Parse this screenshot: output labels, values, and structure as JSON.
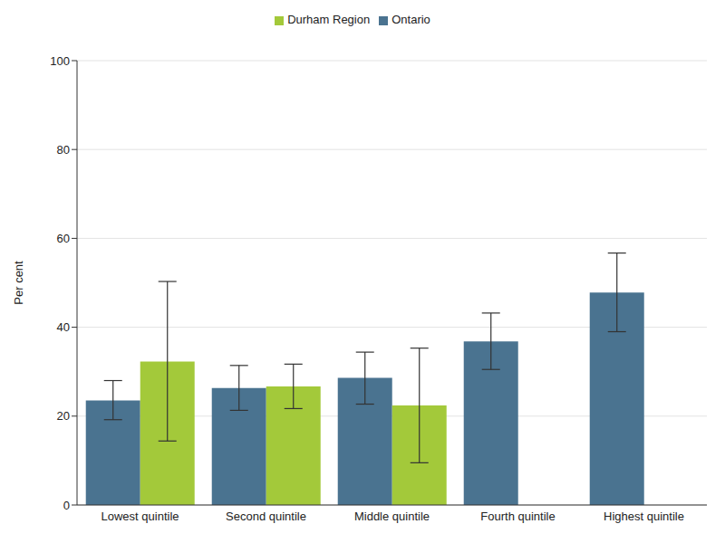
{
  "chart_data": {
    "type": "bar",
    "y_label": "Per cent",
    "categories": [
      "Lowest quintile",
      "Second quintile",
      "Middle quintile",
      "Fourth quintile",
      "Highest quintile"
    ],
    "series": [
      {
        "name": "Ontario",
        "color": "#4a7390",
        "values": [
          23.5,
          26.3,
          28.6,
          36.8,
          47.8
        ],
        "ci": [
          [
            19.2,
            28.0
          ],
          [
            21.3,
            31.4
          ],
          [
            22.7,
            34.4
          ],
          [
            30.5,
            43.2
          ],
          [
            39.0,
            56.7
          ]
        ]
      },
      {
        "name": "Durham Region",
        "color": "#a3c93a",
        "values": [
          32.3,
          26.7,
          22.4,
          null,
          null
        ],
        "ci": [
          [
            14.4,
            50.3
          ],
          [
            21.7,
            31.7
          ],
          [
            9.5,
            35.3
          ],
          null,
          null
        ]
      }
    ],
    "ylim": [
      0,
      100
    ],
    "yticks": [
      0,
      20,
      40,
      60,
      80,
      100
    ],
    "grid": true,
    "legend": "top"
  }
}
